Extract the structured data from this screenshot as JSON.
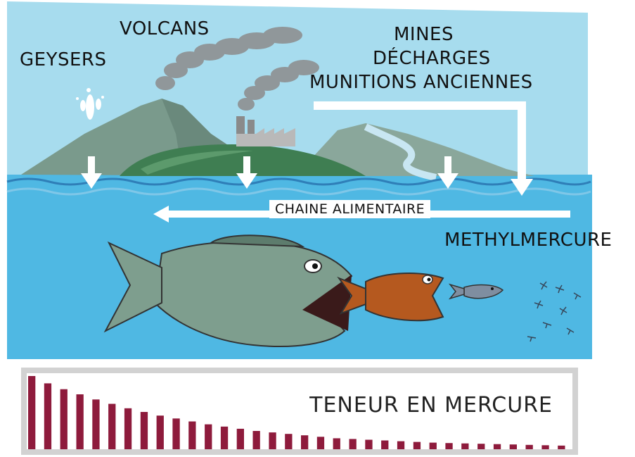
{
  "labels": {
    "geysers": "GEYSERS",
    "volcans": "VOLCANS",
    "mines": "MINES",
    "decharges": "DÉCHARGES",
    "munitions": "MUNITIONS ANCIENNES",
    "chaine": "CHAINE ALIMENTAIRE",
    "methylmercure": "METHYLMERCURE"
  },
  "meter": {
    "title": "TENEUR EN MERCURE",
    "bar_color": "#8e1b3c",
    "levels": [
      1.0,
      0.9,
      0.82,
      0.75,
      0.68,
      0.62,
      0.56,
      0.51,
      0.46,
      0.42,
      0.38,
      0.34,
      0.31,
      0.28,
      0.25,
      0.23,
      0.21,
      0.19,
      0.17,
      0.15,
      0.14,
      0.13,
      0.12,
      0.11,
      0.1,
      0.09,
      0.085,
      0.08,
      0.075,
      0.07,
      0.065,
      0.06,
      0.055,
      0.05
    ]
  },
  "colors": {
    "sky": "#a7dcee",
    "sea": "#4fb8e3",
    "island": "#3f7e52",
    "mountain": "#7a9a8c",
    "arrow": "#ffffff",
    "smoke": "#8c8c8c"
  }
}
